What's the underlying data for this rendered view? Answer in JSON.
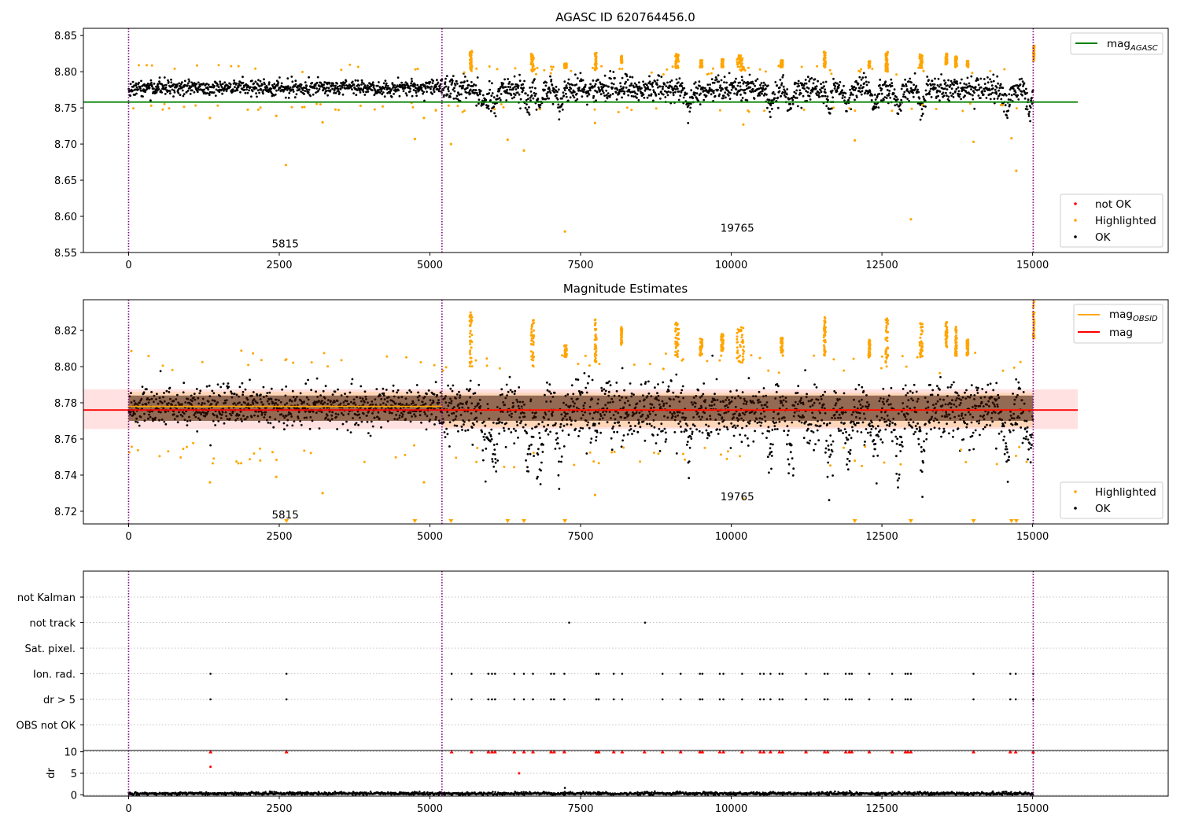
{
  "chart_data": [
    {
      "type": "scatter",
      "title": "AGASC ID 620764456.0",
      "xlim": [
        -750,
        17250
      ],
      "ylim": [
        8.55,
        8.86
      ],
      "x_ticks": [
        "0",
        "2500",
        "5000",
        "7500",
        "10000",
        "12500",
        "15000"
      ],
      "y_ticks": [
        "8.55",
        "8.60",
        "8.65",
        "8.70",
        "8.75",
        "8.80",
        "8.85"
      ],
      "grid": false,
      "obsid_boundaries_x": [
        0,
        5200,
        15010
      ],
      "annotations": [
        {
          "text": "5815",
          "x": 2600,
          "y": 8.557
        },
        {
          "text": "19765",
          "x": 10100,
          "y": 8.579
        }
      ],
      "hline": {
        "name": "mag",
        "subscript": "AGASC",
        "y": 8.758,
        "x_range": [
          -750,
          15750
        ],
        "color": "#008000"
      },
      "series": [
        {
          "name": "not OK",
          "color": "#ff0000"
        },
        {
          "name": "Highlighted",
          "color": "#ffa500"
        },
        {
          "name": "OK",
          "color": "#000000"
        }
      ],
      "legends": [
        {
          "location": "upper right",
          "entries": [
            {
              "label": "mag",
              "subscript": "AGASC",
              "kind": "line",
              "color": "#008000"
            }
          ]
        },
        {
          "location": "lower right",
          "entries": [
            {
              "label": "not OK",
              "kind": "marker",
              "color": "#ff0000"
            },
            {
              "label": "Highlighted",
              "kind": "marker",
              "color": "#ffa500"
            },
            {
              "label": "OK",
              "kind": "marker",
              "color": "#000000"
            }
          ]
        }
      ],
      "segments": [
        {
          "x_range": [
            0,
            5200
          ],
          "baseline": 8.778,
          "noise": 0.0055
        },
        {
          "x_range": [
            5200,
            15010
          ],
          "baseline": 8.776,
          "noise": 0.0085
        }
      ],
      "highlighted_points": [
        {
          "x": 2610,
          "y": 8.671
        },
        {
          "x": 2450,
          "y": 8.739
        },
        {
          "x": 1350,
          "y": 8.736
        },
        {
          "x": 3220,
          "y": 8.73
        },
        {
          "x": 4750,
          "y": 8.707
        },
        {
          "x": 4900,
          "y": 8.736
        },
        {
          "x": 5350,
          "y": 8.7
        },
        {
          "x": 6290,
          "y": 8.706
        },
        {
          "x": 6560,
          "y": 8.691
        },
        {
          "x": 7240,
          "y": 8.579
        },
        {
          "x": 7740,
          "y": 8.729
        },
        {
          "x": 10200,
          "y": 8.727
        },
        {
          "x": 12050,
          "y": 8.705
        },
        {
          "x": 12980,
          "y": 8.596
        },
        {
          "x": 14020,
          "y": 8.703
        },
        {
          "x": 14650,
          "y": 8.708
        },
        {
          "x": 14730,
          "y": 8.663
        }
      ],
      "highlight_clusters": [
        {
          "x": 5680,
          "y_range": [
            8.8,
            8.83
          ],
          "width": 40
        },
        {
          "x": 6700,
          "y_range": [
            8.8,
            8.826
          ],
          "width": 50
        },
        {
          "x": 7250,
          "y_range": [
            8.805,
            8.812
          ],
          "width": 40
        },
        {
          "x": 7750,
          "y_range": [
            8.802,
            8.826
          ],
          "width": 30
        },
        {
          "x": 8180,
          "y_range": [
            8.812,
            8.822
          ],
          "width": 20
        },
        {
          "x": 9100,
          "y_range": [
            8.805,
            8.825
          ],
          "width": 60
        },
        {
          "x": 9500,
          "y_range": [
            8.806,
            8.816
          ],
          "width": 40
        },
        {
          "x": 9850,
          "y_range": [
            8.806,
            8.818
          ],
          "width": 40
        },
        {
          "x": 10150,
          "y_range": [
            8.802,
            8.823
          ],
          "width": 120
        },
        {
          "x": 10840,
          "y_range": [
            8.806,
            8.816
          ],
          "width": 40
        },
        {
          "x": 11550,
          "y_range": [
            8.806,
            8.828
          ],
          "width": 30
        },
        {
          "x": 12290,
          "y_range": [
            8.805,
            8.815
          ],
          "width": 30
        },
        {
          "x": 12580,
          "y_range": [
            8.8,
            8.828
          ],
          "width": 40
        },
        {
          "x": 13150,
          "y_range": [
            8.805,
            8.824
          ],
          "width": 50
        },
        {
          "x": 13570,
          "y_range": [
            8.81,
            8.825
          ],
          "width": 30
        },
        {
          "x": 13730,
          "y_range": [
            8.806,
            8.822
          ],
          "width": 30
        },
        {
          "x": 13920,
          "y_range": [
            8.806,
            8.815
          ],
          "width": 30
        },
        {
          "x": 15020,
          "y_range": [
            8.815,
            8.836
          ],
          "width": 20
        }
      ],
      "dips": [
        5920,
        6080,
        6620,
        6830,
        7150,
        9300,
        10660,
        10980,
        11630,
        11930,
        12380,
        12770,
        13160,
        14570,
        14950
      ]
    },
    {
      "type": "scatter",
      "title": "Magnitude Estimates",
      "xlim": [
        -750,
        17250
      ],
      "ylim": [
        8.713,
        8.837
      ],
      "x_ticks": [
        "0",
        "2500",
        "5000",
        "7500",
        "10000",
        "12500",
        "15000"
      ],
      "y_ticks": [
        "8.72",
        "8.74",
        "8.76",
        "8.78",
        "8.80",
        "8.82"
      ],
      "grid": false,
      "obsid_boundaries_x": [
        0,
        5200,
        15010
      ],
      "annotations": [
        {
          "text": "5815",
          "x": 2600,
          "y": 8.716
        },
        {
          "text": "19765",
          "x": 10100,
          "y": 8.726
        }
      ],
      "mag_line": {
        "name": "mag",
        "y": 8.776,
        "x_range": [
          -750,
          15750
        ],
        "color": "#ff0000"
      },
      "mag_band": {
        "y_range": [
          8.7655,
          8.7875
        ],
        "x_range": [
          -750,
          15750
        ],
        "color": "#ffb3b3"
      },
      "obsid_mags": [
        {
          "x_range": [
            0,
            5200
          ],
          "y": 8.778,
          "band": [
            8.77,
            8.786
          ]
        },
        {
          "x_range": [
            5200,
            15010
          ],
          "y": 8.776,
          "band": [
            8.7665,
            8.7855
          ]
        }
      ],
      "clipped_marker_x": [
        2620,
        4750,
        5350,
        6290,
        6560,
        7240,
        12050,
        12980,
        14020,
        14650,
        14730
      ],
      "legends": [
        {
          "location": "upper right",
          "entries": [
            {
              "label": "mag",
              "subscript": "OBSID",
              "kind": "line",
              "color": "#ffa500"
            },
            {
              "label": "mag",
              "kind": "line",
              "color": "#ff0000"
            }
          ]
        },
        {
          "location": "lower right",
          "entries": [
            {
              "label": "Highlighted",
              "kind": "marker",
              "color": "#ffa500"
            },
            {
              "label": "OK",
              "kind": "marker",
              "color": "#000000"
            }
          ]
        }
      ]
    },
    {
      "type": "scatter",
      "title": "",
      "xlim": [
        -750,
        17250
      ],
      "categories": [
        "not Kalman",
        "not track",
        "Sat. pixel.",
        "Ion. rad.",
        "dr > 5",
        "OBS not OK"
      ],
      "obsid_boundaries_x": [
        0,
        5200,
        15010
      ],
      "flags": {
        "not Kalman": [],
        "not track": [
          7310,
          8570
        ],
        "Sat. pixel.": [],
        "Ion. rad.": [
          1360,
          2620,
          5360,
          5690,
          5970,
          6030,
          6080,
          6400,
          6560,
          6710,
          7010,
          7060,
          7230,
          7760,
          7800,
          8050,
          8190,
          8860,
          9160,
          9480,
          9520,
          9810,
          9870,
          10180,
          10480,
          10540,
          10650,
          10800,
          10850,
          11240,
          11550,
          11600,
          11900,
          11960,
          12000,
          12290,
          12670,
          12890,
          12930,
          12980,
          14020,
          14630,
          14720,
          15010
        ],
        "dr > 5": [
          1360,
          2620,
          5360,
          5690,
          5970,
          6030,
          6080,
          6400,
          6560,
          6710,
          7010,
          7060,
          7230,
          7760,
          7800,
          8050,
          8190,
          8860,
          9160,
          9480,
          9520,
          9810,
          9870,
          10180,
          10480,
          10540,
          10650,
          10800,
          10850,
          11240,
          11550,
          11600,
          11900,
          11960,
          12000,
          12290,
          12670,
          12890,
          12930,
          12980,
          14020,
          14630,
          14720,
          15010
        ],
        "OBS not OK": []
      }
    },
    {
      "type": "scatter",
      "title": "",
      "ylabel": "dr",
      "xlim": [
        -750,
        17250
      ],
      "ylim": [
        -0.3,
        10.3
      ],
      "x_ticks": [
        "0",
        "2500",
        "5000",
        "7500",
        "10000",
        "12500",
        "15000"
      ],
      "y_ticks": [
        "0",
        "5",
        "10"
      ],
      "obsid_boundaries_x": [
        0,
        5200,
        15010
      ],
      "clipped_red_x": [
        1360,
        2620,
        5360,
        5690,
        5970,
        6030,
        6080,
        6400,
        6560,
        6710,
        7010,
        7060,
        7230,
        7760,
        7800,
        8050,
        8190,
        8560,
        8860,
        9160,
        9480,
        9520,
        9810,
        9870,
        10180,
        10480,
        10540,
        10650,
        10800,
        10850,
        11240,
        11550,
        11600,
        11900,
        11960,
        12000,
        12290,
        12670,
        12890,
        12930,
        12980,
        14020,
        14630,
        14720,
        15010
      ],
      "red_points": [
        {
          "x": 1360,
          "y": 6.5
        },
        {
          "x": 6480,
          "y": 5.0
        }
      ],
      "black_points": [
        {
          "x": 7240,
          "y": 1.6
        }
      ],
      "dr_baseline": {
        "x_range": [
          0,
          15010
        ],
        "typical": 0.3
      }
    }
  ]
}
